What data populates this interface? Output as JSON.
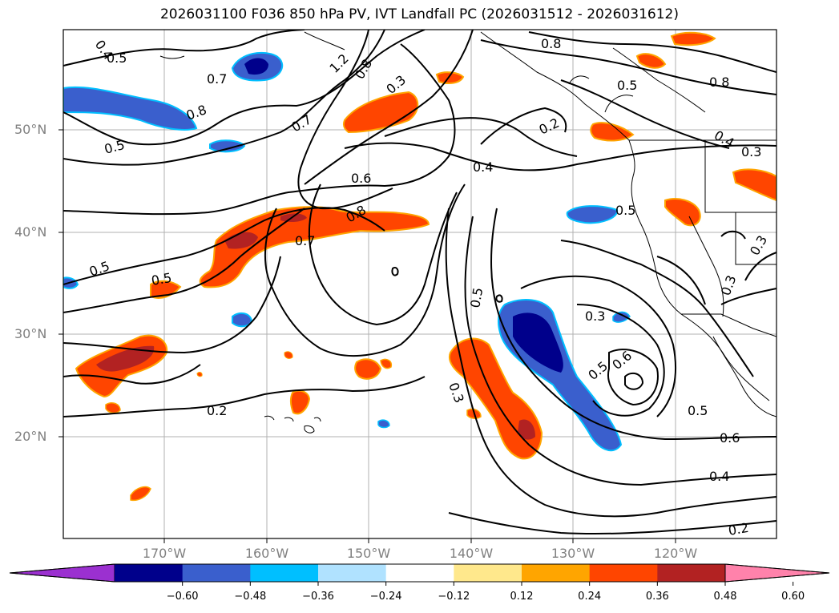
{
  "title": "2026031100 F036 850 hPa PV, IVT Landfall PC (2026031512 - 2026031612)",
  "lat_labels": [
    "50°N",
    "40°N",
    "30°N",
    "20°N"
  ],
  "lon_labels": [
    "170°W",
    "160°W",
    "150°W",
    "140°W",
    "130°W",
    "120°W"
  ],
  "colorbar": {
    "colors": [
      "#9b30d0",
      "#00008b",
      "#3a5fcd",
      "#00bfff",
      "#b0e2ff",
      "#ffffff",
      "#ffe88c",
      "#ffa500",
      "#ff4500",
      "#b22222",
      "#ff82ab"
    ],
    "tick_labels": [
      "−0.60",
      "−0.48",
      "−0.36",
      "−0.24",
      "−0.12",
      "0.12",
      "0.24",
      "0.36",
      "0.48",
      "0.60"
    ]
  },
  "contour_labels": [
    "0.4",
    "0.5",
    "0.7",
    "1.2",
    "0.8",
    "0.3",
    "0.8",
    "0.8",
    "0.7",
    "0.5",
    "0.8",
    "0.2",
    "0.5",
    "0.4",
    "0.6",
    "0.8",
    "0.7",
    "0.4",
    "0.3",
    "0.5",
    "0.5",
    "0.5",
    "0.3",
    "0.5",
    "0.6",
    "0.3",
    "0.3",
    "0.5",
    "0.2",
    "0.5",
    "0.6",
    "0.4",
    "0.2",
    "0.3"
  ]
}
